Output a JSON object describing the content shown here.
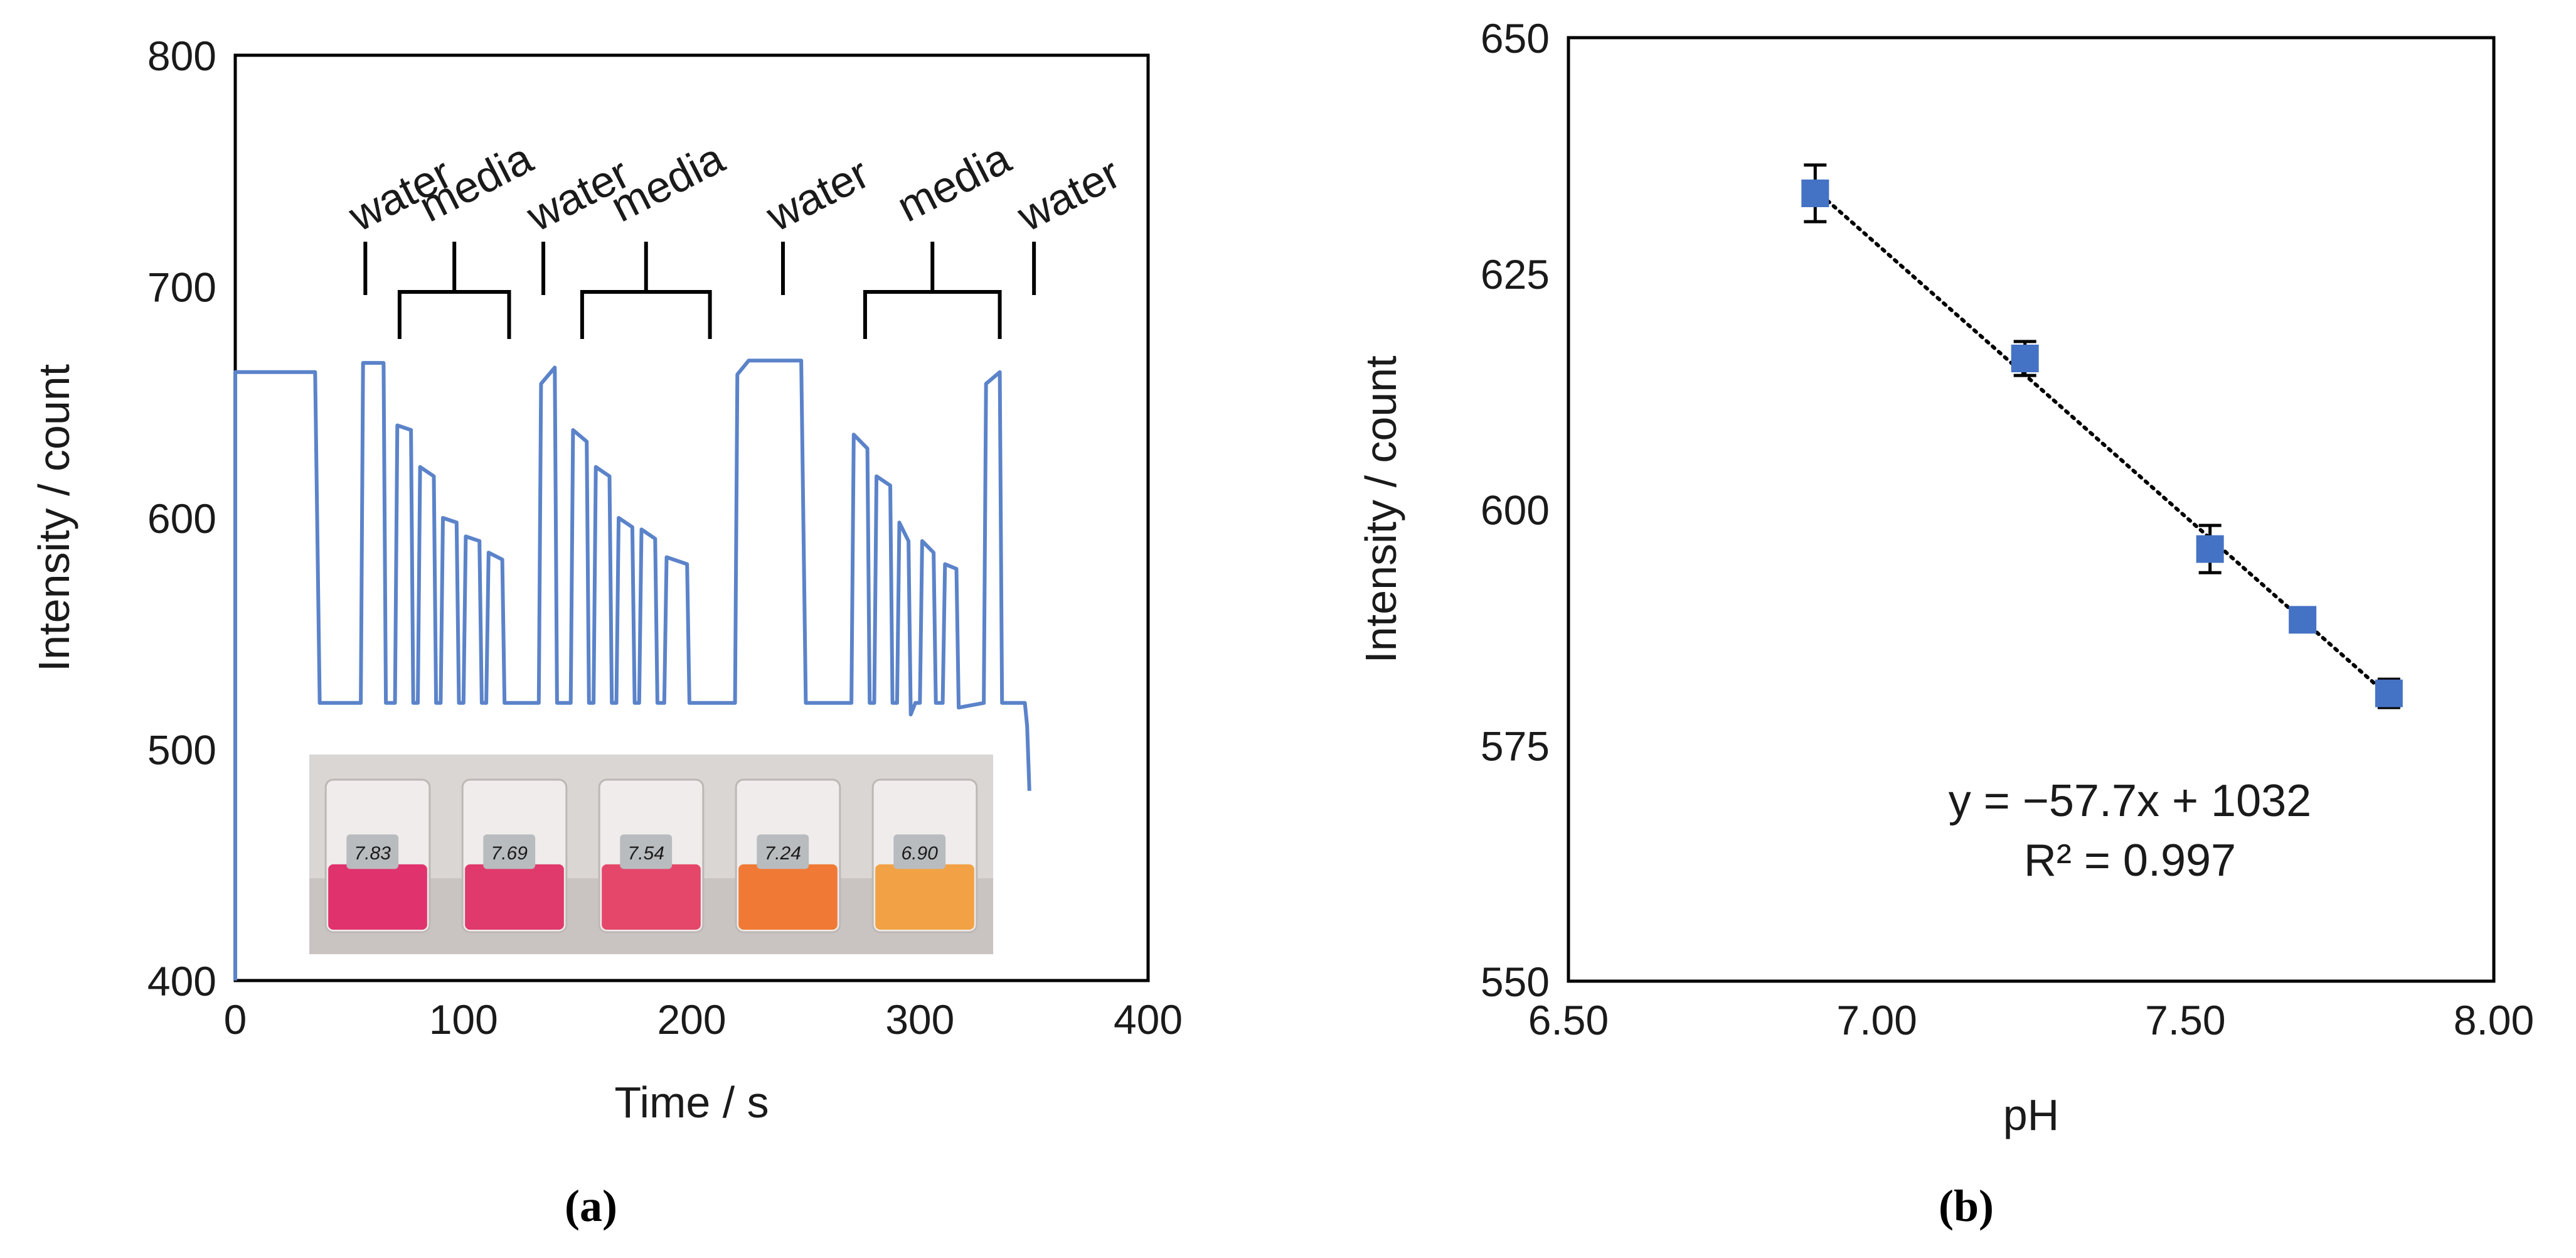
{
  "chart_data": [
    {
      "panel": "a",
      "type": "line",
      "caption": "(a)",
      "xlabel": "Time / s",
      "ylabel": "Intensity / count",
      "xlim": [
        0,
        400
      ],
      "ylim": [
        400,
        800
      ],
      "xticks": [
        0,
        100,
        200,
        300,
        400
      ],
      "yticks": [
        400,
        500,
        600,
        700,
        800
      ],
      "grid": false,
      "series": [
        {
          "name": "Intensity",
          "color": "#5b83c9",
          "points": [
            [
              0,
              400
            ],
            [
              0,
              663
            ],
            [
              35,
              663
            ],
            [
              37,
              520
            ],
            [
              55,
              520
            ],
            [
              56,
              667
            ],
            [
              65,
              667
            ],
            [
              66,
              520
            ],
            [
              70,
              520
            ],
            [
              71,
              640
            ],
            [
              77,
              638
            ],
            [
              78,
              520
            ],
            [
              80,
              520
            ],
            [
              81,
              622
            ],
            [
              87,
              618
            ],
            [
              88,
              520
            ],
            [
              90,
              520
            ],
            [
              91,
              600
            ],
            [
              97,
              598
            ],
            [
              98,
              520
            ],
            [
              100,
              520
            ],
            [
              101,
              592
            ],
            [
              107,
              590
            ],
            [
              108,
              520
            ],
            [
              110,
              520
            ],
            [
              111,
              585
            ],
            [
              117,
              582
            ],
            [
              118,
              520
            ],
            [
              133,
              520
            ],
            [
              134,
              658
            ],
            [
              140,
              665
            ],
            [
              141,
              520
            ],
            [
              147,
              520
            ],
            [
              148,
              638
            ],
            [
              154,
              633
            ],
            [
              155,
              520
            ],
            [
              157,
              520
            ],
            [
              158,
              622
            ],
            [
              164,
              618
            ],
            [
              165,
              520
            ],
            [
              167,
              520
            ],
            [
              168,
              600
            ],
            [
              174,
              596
            ],
            [
              175,
              520
            ],
            [
              177,
              520
            ],
            [
              178,
              595
            ],
            [
              184,
              591
            ],
            [
              185,
              520
            ],
            [
              188,
              520
            ],
            [
              189,
              583
            ],
            [
              198,
              580
            ],
            [
              199,
              520
            ],
            [
              219,
              520
            ],
            [
              220,
              662
            ],
            [
              225,
              668
            ],
            [
              248,
              668
            ],
            [
              250,
              520
            ],
            [
              270,
              520
            ],
            [
              271,
              636
            ],
            [
              277,
              630
            ],
            [
              278,
              520
            ],
            [
              280,
              520
            ],
            [
              281,
              618
            ],
            [
              287,
              614
            ],
            [
              288,
              520
            ],
            [
              290,
              520
            ],
            [
              291,
              598
            ],
            [
              295,
              590
            ],
            [
              296,
              515
            ],
            [
              298,
              520
            ],
            [
              300,
              520
            ],
            [
              301,
              590
            ],
            [
              306,
              585
            ],
            [
              307,
              520
            ],
            [
              310,
              520
            ],
            [
              311,
              580
            ],
            [
              316,
              578
            ],
            [
              317,
              518
            ],
            [
              328,
              520
            ],
            [
              329,
              658
            ],
            [
              335,
              663
            ],
            [
              336,
              520
            ],
            [
              346,
              520
            ],
            [
              347,
              510
            ],
            [
              348,
              482
            ]
          ]
        }
      ],
      "annotations": [
        {
          "label": "water",
          "kind": "single",
          "at": 57
        },
        {
          "label": "media",
          "kind": "bracket",
          "from": 72,
          "to": 120
        },
        {
          "label": "water",
          "kind": "single",
          "at": 135
        },
        {
          "label": "media",
          "kind": "bracket",
          "from": 152,
          "to": 208
        },
        {
          "label": "water",
          "kind": "single",
          "at": 240
        },
        {
          "label": "media",
          "kind": "bracket",
          "from": 276,
          "to": 335
        },
        {
          "label": "water",
          "kind": "single",
          "at": 350
        }
      ],
      "inset": {
        "name": "beaker-photo",
        "beakers": [
          {
            "tag": "7.83",
            "color": "#e0336e"
          },
          {
            "tag": "7.69",
            "color": "#e03a6d"
          },
          {
            "tag": "7.54",
            "color": "#e5476a"
          },
          {
            "tag": "7.24",
            "color": "#f07a35"
          },
          {
            "tag": "6.90",
            "color": "#f2a245"
          }
        ]
      }
    },
    {
      "panel": "b",
      "type": "scatter",
      "caption": "(b)",
      "xlabel": "pH",
      "ylabel": "Intensity / count",
      "xlim": [
        6.5,
        8.0
      ],
      "ylim": [
        550,
        650
      ],
      "xticks": [
        "6.50",
        "7.00",
        "7.50",
        "8.00"
      ],
      "yticks": [
        550,
        575,
        600,
        625,
        650
      ],
      "grid": false,
      "series": [
        {
          "name": "Intensity",
          "color": "#4472c4",
          "x": [
            6.9,
            7.24,
            7.54,
            7.69,
            7.83
          ],
          "y": [
            633.5,
            616.0,
            595.8,
            588.3,
            580.5
          ],
          "yerr": [
            3.0,
            1.8,
            2.5,
            1.2,
            1.5
          ]
        }
      ],
      "trendline": {
        "slope": -57.7,
        "intercept": 1032,
        "style": "dotted"
      },
      "equation": "y = −57.7x + 1032",
      "r2": "R² = 0.997"
    }
  ]
}
